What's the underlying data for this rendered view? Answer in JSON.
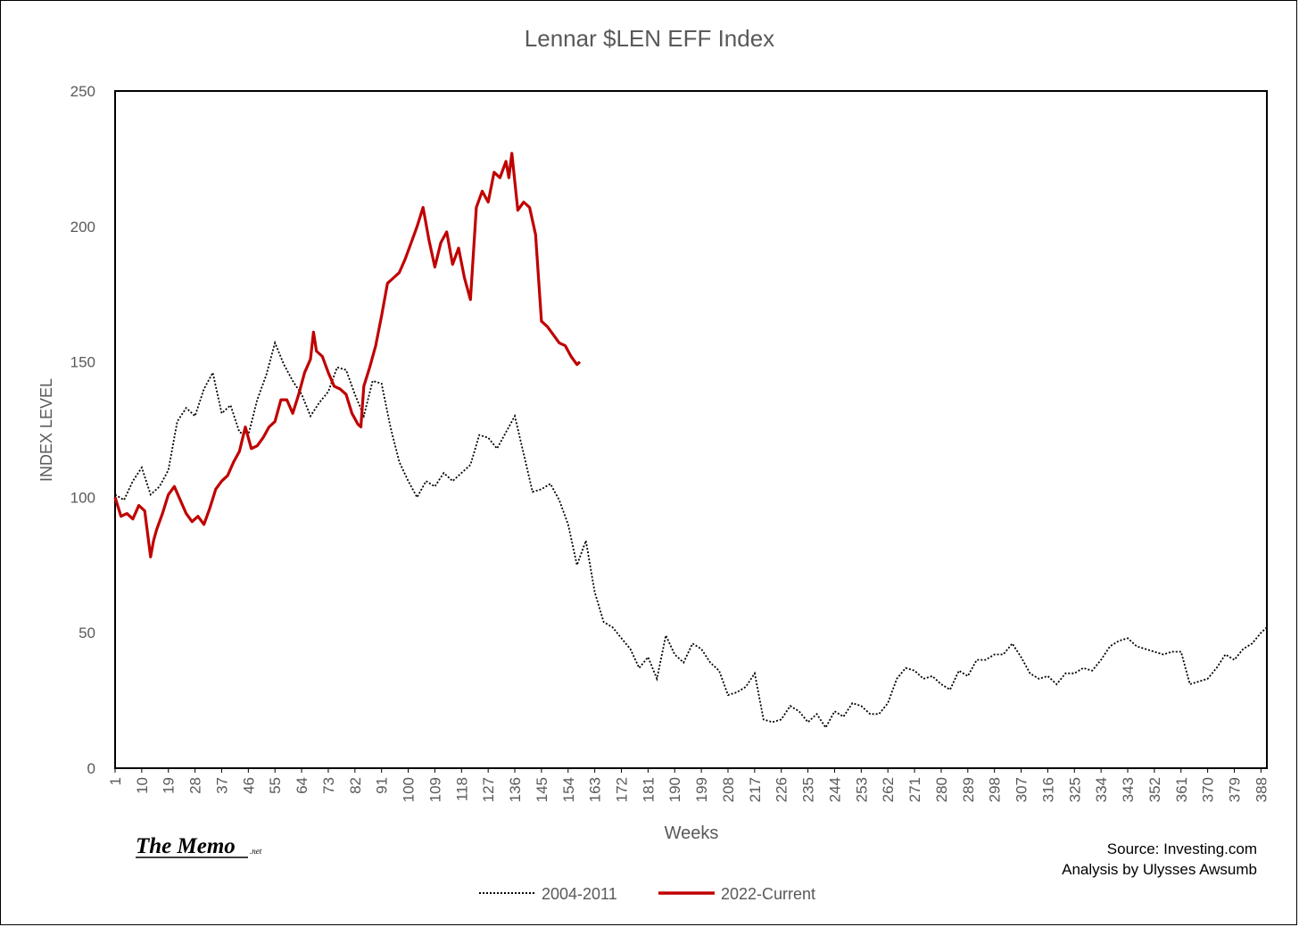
{
  "chart_data": {
    "type": "line",
    "title": "Lennar $LEN EFF Index",
    "xlabel": "Weeks",
    "ylabel": "INDEX LEVEL",
    "ylim": [
      0,
      250
    ],
    "xlim": [
      1,
      390
    ],
    "yticks": [
      "0",
      "50",
      "100",
      "150",
      "200",
      "250"
    ],
    "xticks": [
      "1",
      "10",
      "19",
      "28",
      "37",
      "46",
      "55",
      "64",
      "73",
      "82",
      "91",
      "100",
      "109",
      "118",
      "127",
      "136",
      "145",
      "154",
      "163",
      "172",
      "181",
      "190",
      "199",
      "208",
      "217",
      "226",
      "235",
      "244",
      "253",
      "262",
      "271",
      "280",
      "289",
      "298",
      "307",
      "316",
      "325",
      "334",
      "343",
      "352",
      "361",
      "370",
      "379",
      "388"
    ],
    "grid": false,
    "legend_position": "bottom",
    "series": [
      {
        "name": "2004-2011",
        "color": "#000000",
        "style": "dotted",
        "x": [
          1,
          4,
          7,
          10,
          13,
          16,
          19,
          22,
          25,
          28,
          31,
          34,
          37,
          40,
          43,
          46,
          49,
          52,
          55,
          58,
          61,
          64,
          67,
          70,
          73,
          76,
          79,
          82,
          85,
          88,
          91,
          94,
          97,
          100,
          103,
          106,
          109,
          112,
          115,
          118,
          121,
          124,
          127,
          130,
          133,
          136,
          139,
          142,
          145,
          148,
          151,
          154,
          157,
          160,
          163,
          166,
          169,
          172,
          175,
          178,
          181,
          184,
          187,
          190,
          193,
          196,
          199,
          202,
          205,
          208,
          211,
          214,
          217,
          220,
          223,
          226,
          229,
          232,
          235,
          238,
          241,
          244,
          247,
          250,
          253,
          256,
          259,
          262,
          265,
          268,
          271,
          274,
          277,
          280,
          283,
          286,
          289,
          292,
          295,
          298,
          301,
          304,
          307,
          310,
          313,
          316,
          319,
          322,
          325,
          328,
          331,
          334,
          337,
          340,
          343,
          346,
          349,
          352,
          355,
          358,
          361,
          364,
          367,
          370,
          373,
          376,
          379,
          382,
          385,
          388,
          390
        ],
        "values": [
          101,
          99,
          106,
          111,
          101,
          104,
          110,
          128,
          133,
          130,
          140,
          146,
          131,
          134,
          124,
          123,
          136,
          145,
          157,
          149,
          143,
          138,
          130,
          135,
          139,
          148,
          147,
          138,
          130,
          143,
          142,
          126,
          113,
          106,
          100,
          106,
          104,
          109,
          106,
          109,
          112,
          123,
          122,
          118,
          124,
          130,
          116,
          102,
          103,
          105,
          99,
          90,
          75,
          84,
          65,
          54,
          52,
          48,
          44,
          37,
          41,
          33,
          49,
          42,
          39,
          46,
          44,
          39,
          36,
          27,
          28,
          30,
          35,
          18,
          17,
          18,
          23,
          21,
          17,
          20,
          15,
          21,
          19,
          24,
          23,
          20,
          20,
          24,
          33,
          37,
          36,
          33,
          34,
          31,
          29,
          36,
          34,
          40,
          40,
          42,
          42,
          46,
          41,
          35,
          33,
          34,
          31,
          35,
          35,
          37,
          36,
          40,
          45,
          47,
          48,
          45,
          44,
          43,
          42,
          43,
          43,
          31,
          32,
          33,
          37,
          42,
          40,
          44,
          46,
          50,
          52
        ]
      },
      {
        "name": "2022-Current",
        "color": "#c00000",
        "style": "solid",
        "x": [
          1,
          3,
          5,
          7,
          9,
          11,
          13,
          14,
          15,
          17,
          19,
          21,
          23,
          25,
          27,
          29,
          31,
          33,
          35,
          37,
          39,
          41,
          43,
          45,
          47,
          49,
          51,
          53,
          55,
          57,
          59,
          61,
          63,
          65,
          67,
          68,
          69,
          71,
          73,
          75,
          77,
          79,
          81,
          83,
          84,
          85,
          87,
          89,
          91,
          93,
          95,
          97,
          99,
          101,
          103,
          105,
          107,
          109,
          111,
          113,
          115,
          117,
          119,
          121,
          123,
          125,
          127,
          129,
          131,
          133,
          134,
          135,
          137,
          139,
          141,
          143,
          145,
          147,
          149,
          151,
          153,
          155,
          157,
          158
        ],
        "values": [
          100,
          93,
          94,
          92,
          97,
          95,
          78,
          84,
          88,
          94,
          101,
          104,
          99,
          94,
          91,
          93,
          90,
          96,
          103,
          106,
          108,
          113,
          117,
          126,
          118,
          119,
          122,
          126,
          128,
          136,
          136,
          131,
          138,
          146,
          151,
          161,
          154,
          152,
          146,
          141,
          140,
          138,
          131,
          127,
          126,
          141,
          148,
          156,
          167,
          179,
          181,
          183,
          188,
          194,
          200,
          207,
          195,
          185,
          194,
          198,
          186,
          192,
          181,
          173,
          207,
          213,
          209,
          220,
          218,
          224,
          218,
          227,
          206,
          209,
          207,
          197,
          165,
          163,
          160,
          157,
          156,
          152,
          149,
          150
        ]
      }
    ]
  },
  "legend": {
    "series_1_label": "2004-2011",
    "series_2_label": "2022-Current"
  },
  "notes": {
    "source": "Source: Investing.com",
    "analysis": "Analysis by Ulysses Awsumb"
  },
  "brand": {
    "name": "The Memo",
    "suffix": ".net"
  }
}
